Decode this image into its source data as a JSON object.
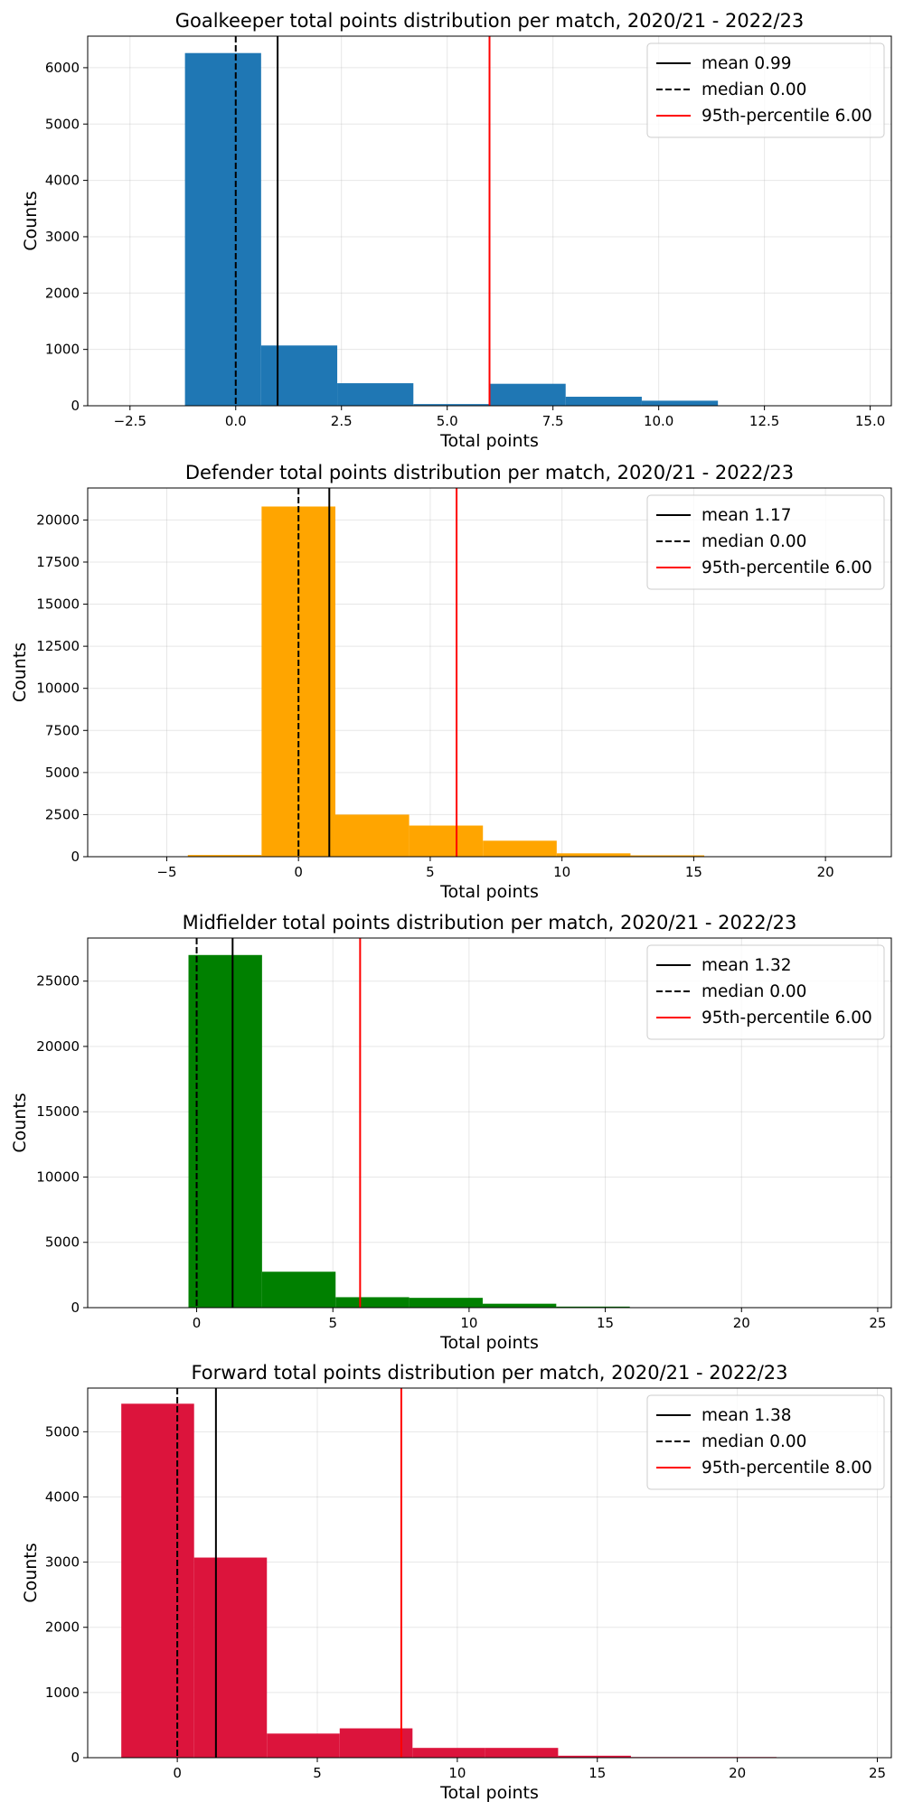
{
  "chart_data": [
    {
      "type": "bar",
      "title": "Goalkeeper total points distribution per match, 2020/21 - 2022/23",
      "xlabel": "Total points",
      "ylabel": "Counts",
      "xlim": [
        -3.5,
        15.5
      ],
      "ylim": [
        0,
        6560
      ],
      "xticks": [
        -2.5,
        0.0,
        2.5,
        5.0,
        7.5,
        10.0,
        12.5,
        15.0
      ],
      "xtick_labels": [
        "−2.5",
        "0.0",
        "2.5",
        "5.0",
        "7.5",
        "10.0",
        "12.5",
        "15.0"
      ],
      "yticks": [
        0,
        1000,
        2000,
        3000,
        4000,
        5000,
        6000
      ],
      "yticks_labels": [
        "0",
        "1000",
        "2000",
        "3000",
        "4000",
        "5000",
        "6000"
      ],
      "grid": true,
      "legend_position": "top-right",
      "color": "#1f77b4",
      "bins": [
        -1.2,
        0.6,
        2.4,
        4.2,
        6.0,
        7.8,
        9.6,
        11.4,
        13.2,
        15.0
      ],
      "counts": [
        6260,
        1070,
        400,
        30,
        390,
        160,
        90,
        0,
        0
      ],
      "lines": [
        {
          "label": "mean 0.99",
          "x": 0.99,
          "color": "#000000",
          "style": "solid"
        },
        {
          "label": "median 0.00",
          "x": 0.0,
          "color": "#000000",
          "style": "dashed"
        },
        {
          "label": "95th-percentile 6.00",
          "x": 6.0,
          "color": "#ff0000",
          "style": "solid"
        }
      ]
    },
    {
      "type": "bar",
      "title": "Defender total points distribution per match, 2020/21 - 2022/23",
      "xlabel": "Total points",
      "ylabel": "Counts",
      "xlim": [
        -8,
        22.5
      ],
      "ylim": [
        0,
        21900
      ],
      "xticks": [
        -5,
        0,
        5,
        10,
        15,
        20
      ],
      "xtick_labels": [
        "−5",
        "0",
        "5",
        "10",
        "15",
        "20"
      ],
      "yticks": [
        0,
        2500,
        5000,
        7500,
        10000,
        12500,
        15000,
        17500,
        20000
      ],
      "yticks_labels": [
        "0",
        "2500",
        "5000",
        "7500",
        "10000",
        "12500",
        "15000",
        "17500",
        "20000"
      ],
      "grid": true,
      "legend_position": "top-right",
      "color": "#ffa500",
      "bins": [
        -4.2,
        -1.4,
        1.4,
        4.2,
        7.0,
        9.8,
        12.6,
        15.4,
        18.2,
        21.0
      ],
      "counts": [
        100,
        20800,
        2500,
        1850,
        950,
        200,
        80,
        0,
        0
      ],
      "lines": [
        {
          "label": "mean 1.17",
          "x": 1.17,
          "color": "#000000",
          "style": "solid"
        },
        {
          "label": "median 0.00",
          "x": 0.0,
          "color": "#000000",
          "style": "dashed"
        },
        {
          "label": "95th-percentile 6.00",
          "x": 6.0,
          "color": "#ff0000",
          "style": "solid"
        }
      ]
    },
    {
      "type": "bar",
      "title": "Midfielder total points distribution per match, 2020/21 - 2022/23",
      "xlabel": "Total points",
      "ylabel": "Counts",
      "xlim": [
        -4,
        25.5
      ],
      "ylim": [
        0,
        28300
      ],
      "xticks": [
        0,
        5,
        10,
        15,
        20,
        25
      ],
      "xtick_labels": [
        "0",
        "5",
        "10",
        "15",
        "20",
        "25"
      ],
      "yticks": [
        0,
        5000,
        10000,
        15000,
        20000,
        25000
      ],
      "yticks_labels": [
        "0",
        "5000",
        "10000",
        "15000",
        "20000",
        "25000"
      ],
      "grid": true,
      "legend_position": "top-right",
      "color": "#008000",
      "bins": [
        -0.3,
        2.4,
        5.1,
        7.8,
        10.5,
        13.2,
        15.9,
        18.6,
        21.3,
        24.0
      ],
      "counts": [
        27000,
        2750,
        800,
        750,
        300,
        80,
        0,
        0,
        0
      ],
      "lines": [
        {
          "label": "mean 1.32",
          "x": 1.32,
          "color": "#000000",
          "style": "solid"
        },
        {
          "label": "median 0.00",
          "x": 0.0,
          "color": "#000000",
          "style": "dashed"
        },
        {
          "label": "95th-percentile 6.00",
          "x": 6.0,
          "color": "#ff0000",
          "style": "solid"
        }
      ]
    },
    {
      "type": "bar",
      "title": "Forward total points distribution per match, 2020/21 - 2022/23",
      "xlabel": "Total points",
      "ylabel": "Counts",
      "xlim": [
        -3.2,
        25.5
      ],
      "ylim": [
        0,
        5670
      ],
      "xticks": [
        0,
        5,
        10,
        15,
        20,
        25
      ],
      "xtick_labels": [
        "0",
        "5",
        "10",
        "15",
        "20",
        "25"
      ],
      "yticks": [
        0,
        1000,
        2000,
        3000,
        4000,
        5000
      ],
      "yticks_labels": [
        "0",
        "1000",
        "2000",
        "3000",
        "4000",
        "5000"
      ],
      "grid": true,
      "legend_position": "top-right",
      "color": "#dc143c",
      "bins": [
        -2.0,
        0.6,
        3.2,
        5.8,
        8.4,
        11.0,
        13.6,
        16.2,
        18.8,
        21.4
      ],
      "counts": [
        5430,
        3070,
        370,
        450,
        150,
        150,
        30,
        10,
        10
      ],
      "lines": [
        {
          "label": "mean 1.38",
          "x": 1.38,
          "color": "#000000",
          "style": "solid"
        },
        {
          "label": "median 0.00",
          "x": 0.0,
          "color": "#000000",
          "style": "dashed"
        },
        {
          "label": "95th-percentile 8.00",
          "x": 8.0,
          "color": "#ff0000",
          "style": "solid"
        }
      ]
    }
  ]
}
